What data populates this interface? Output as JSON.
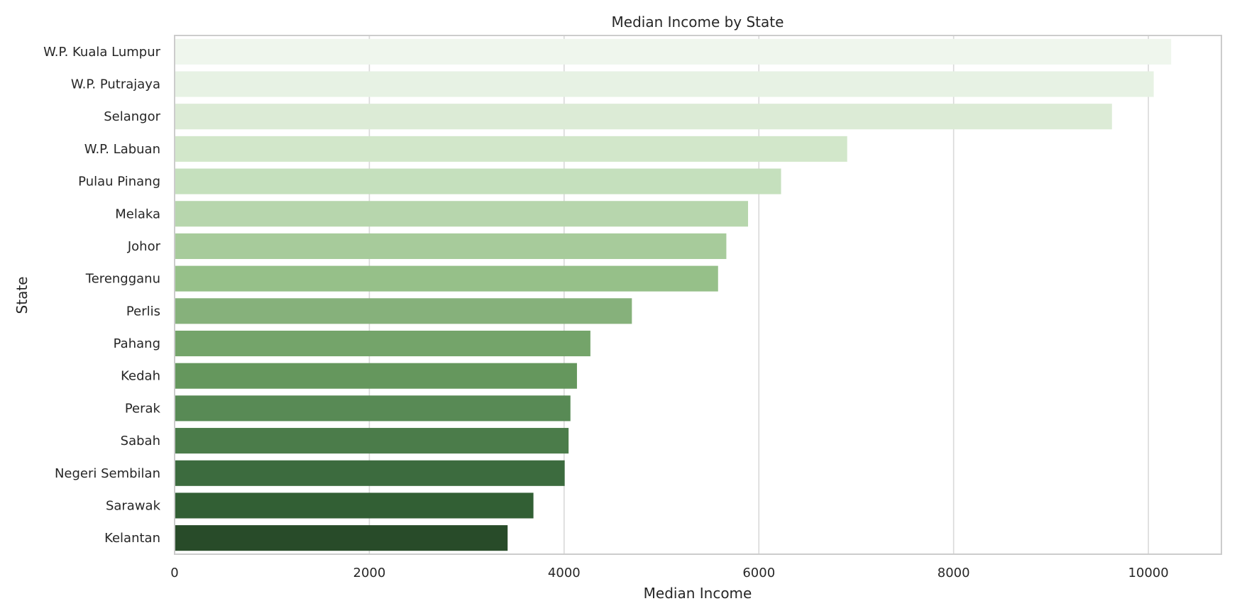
{
  "chart_data": {
    "type": "bar",
    "orientation": "horizontal",
    "title": "Median Income by State",
    "xlabel": "Median Income",
    "ylabel": "State",
    "xlim": [
      0,
      10750
    ],
    "xticks": [
      0,
      2000,
      4000,
      6000,
      8000,
      10000
    ],
    "grid": true,
    "categories": [
      "W.P. Kuala Lumpur",
      "W.P. Putrajaya",
      "Selangor",
      "W.P. Labuan",
      "Pulau Pinang",
      "Melaka",
      "Johor",
      "Terengganu",
      "Perlis",
      "Pahang",
      "Kedah",
      "Perak",
      "Sabah",
      "Negeri Sembilan",
      "Sarawak",
      "Kelantan"
    ],
    "values": [
      10234,
      10055,
      9626,
      6907,
      6228,
      5889,
      5666,
      5581,
      4696,
      4270,
      4132,
      4065,
      4046,
      4006,
      3685,
      3420
    ],
    "colors": [
      "#eff6ed",
      "#e7f2e4",
      "#dcebd6",
      "#d2e7ca",
      "#c5e0bd",
      "#b7d6ad",
      "#a7cb9b",
      "#96c089",
      "#86b17b",
      "#74a46a",
      "#65975d",
      "#588a55",
      "#4b7c4a",
      "#3c6b3e",
      "#325f34",
      "#284b29"
    ]
  }
}
